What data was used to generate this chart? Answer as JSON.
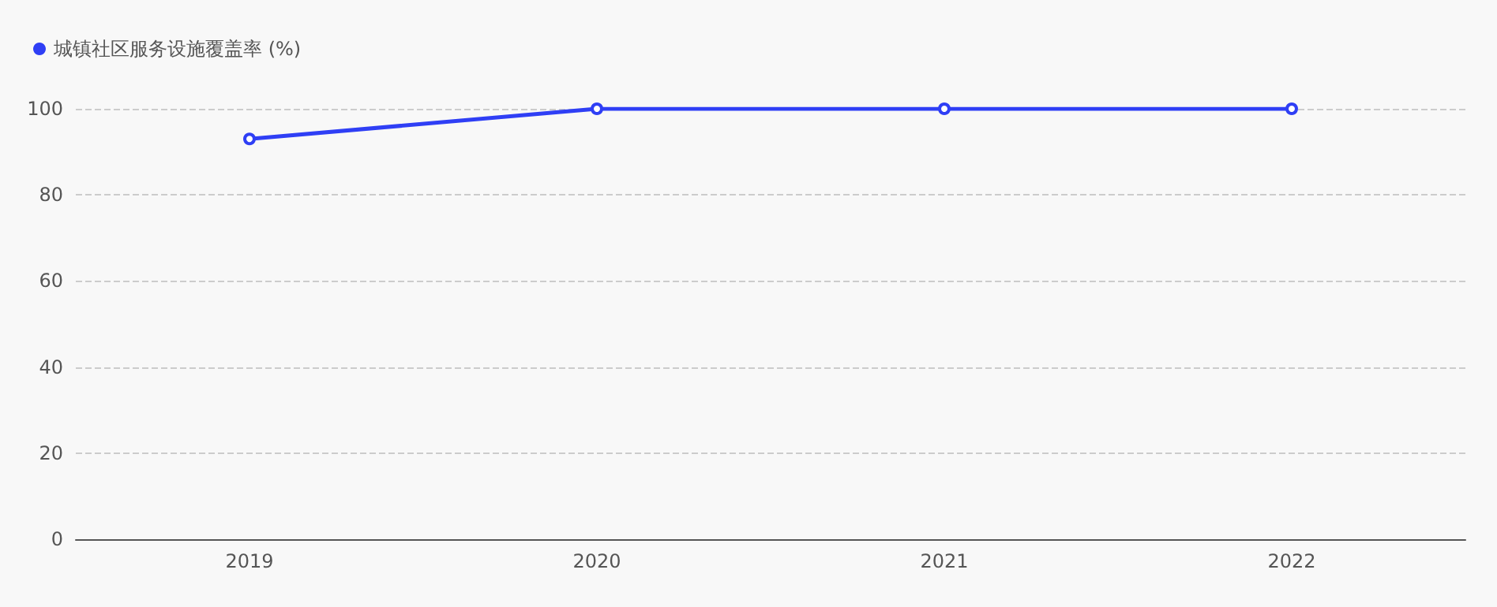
{
  "chart_data": {
    "type": "line",
    "categories": [
      "2019",
      "2020",
      "2021",
      "2022"
    ],
    "series": [
      {
        "name": "城镇社区服务设施覆盖率 (%)",
        "color": "#2f3ff5",
        "values": [
          93,
          100,
          100,
          100
        ]
      }
    ],
    "ylim": [
      0,
      100
    ],
    "yticks": [
      0,
      20,
      40,
      60,
      80,
      100
    ],
    "grid": "y",
    "legend": "top left",
    "marker": "circle",
    "line_style": "solid"
  }
}
